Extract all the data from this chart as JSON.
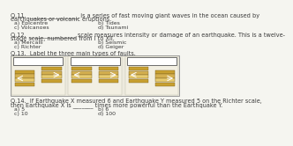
{
  "bg_color": "#f5f5f0",
  "q11_line1": "Q.11.  _________________ is a series of fast moving giant waves in the ocean caused by",
  "q11_line2": "earthquakes or volcanic eruptions.",
  "q11_options": [
    [
      "a) Epicentre",
      "b) Tides"
    ],
    [
      "c) Volcanoes",
      "d) Tsunami"
    ]
  ],
  "q12_line1": "Q.12.  ________________ scale measures intensity or damage of an earthquake. This is a twelve-",
  "q12_line2": "stage scale, numbered from I to XII.",
  "q12_options": [
    [
      "a) Mercalli",
      "b) Seismic"
    ],
    [
      "c) Richter",
      "d) Geiger"
    ]
  ],
  "q13_text": "Q.13.  Label the three main types of faults.",
  "q14_line1": "Q.14.  If Earthquake X measured 6 and Earthquake Y measured 5 on the Richter scale,",
  "q14_line2": "then Earthquake X is _______ times more powerful than the Earthquake Y.",
  "q14_options": [
    [
      "a) 5",
      "b) 6"
    ],
    [
      "c) 10",
      "d) 100"
    ]
  ],
  "text_color": "#3a3a3a",
  "bg_color_panel": "#edeade",
  "label_box_color": "#ffffff",
  "label_box_edge": "#555555",
  "layer_colors": [
    "#c8a030",
    "#d4b050",
    "#e8cc70",
    "#c8a030"
  ],
  "layer_colors2": [
    "#d4aa40",
    "#e0bc60",
    "#f0d080",
    "#d4aa40"
  ]
}
